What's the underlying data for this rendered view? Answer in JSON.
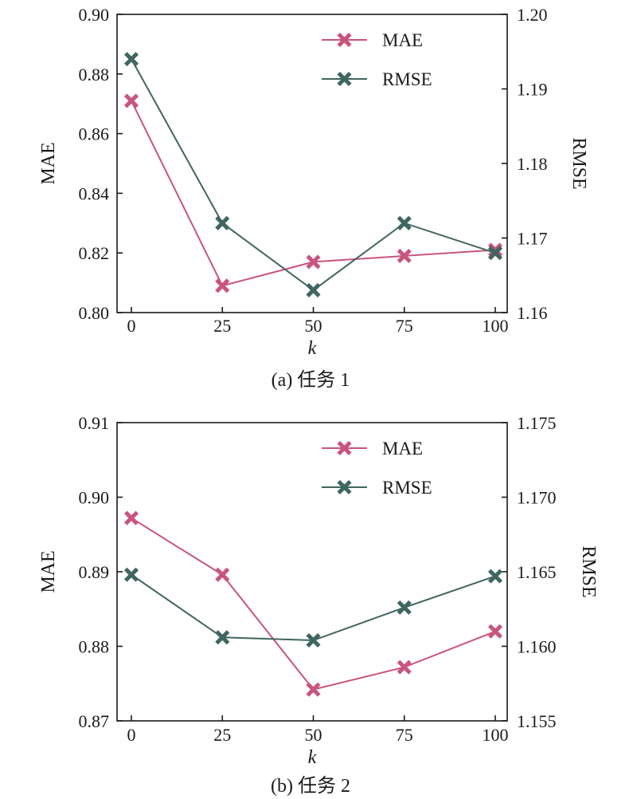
{
  "colors": {
    "mae": "#c9547f",
    "rmse": "#3f6660",
    "axis": "#1a1a1a"
  },
  "chart_data": [
    {
      "type": "line",
      "caption": "(a) 任务 1",
      "x": [
        0,
        25,
        50,
        75,
        100
      ],
      "x_ticks": [
        "0",
        "25",
        "50",
        "75",
        "100"
      ],
      "xlabel": "k",
      "y_left": {
        "label": "MAE",
        "lim": [
          0.8,
          0.9
        ],
        "ticks": [
          "0.80",
          "0.82",
          "0.84",
          "0.86",
          "0.88",
          "0.90"
        ]
      },
      "y_right": {
        "label": "RMSE",
        "lim": [
          1.16,
          1.2
        ],
        "ticks": [
          "1.16",
          "1.17",
          "1.18",
          "1.19",
          "1.20"
        ]
      },
      "series": [
        {
          "name": "MAE",
          "axis": "left",
          "color": "#c9547f",
          "marker": "x-thick",
          "values": [
            0.871,
            0.809,
            0.817,
            0.819,
            0.821
          ]
        },
        {
          "name": "RMSE",
          "axis": "right",
          "color": "#3f6660",
          "marker": "x-thick",
          "values": [
            1.194,
            1.172,
            1.163,
            1.172,
            1.168
          ]
        }
      ],
      "legend_position": "top-right",
      "grid": false
    },
    {
      "type": "line",
      "caption": "(b) 任务 2",
      "x": [
        0,
        25,
        50,
        75,
        100
      ],
      "x_ticks": [
        "0",
        "25",
        "50",
        "75",
        "100"
      ],
      "xlabel": "k",
      "y_left": {
        "label": "MAE",
        "lim": [
          0.87,
          0.91
        ],
        "ticks": [
          "0.87",
          "0.88",
          "0.89",
          "0.90",
          "0.91"
        ]
      },
      "y_right": {
        "label": "RMSE",
        "lim": [
          1.155,
          1.175
        ],
        "ticks": [
          "1.155",
          "1.160",
          "1.165",
          "1.170",
          "1.175"
        ]
      },
      "series": [
        {
          "name": "MAE",
          "axis": "left",
          "color": "#c9547f",
          "marker": "x-thick",
          "values": [
            0.8972,
            0.8896,
            0.8742,
            0.8772,
            0.882
          ]
        },
        {
          "name": "RMSE",
          "axis": "right",
          "color": "#3f6660",
          "marker": "x-thick",
          "values": [
            1.1648,
            1.1606,
            1.1604,
            1.1626,
            1.1647
          ]
        }
      ],
      "legend_position": "top-right",
      "grid": false
    }
  ]
}
